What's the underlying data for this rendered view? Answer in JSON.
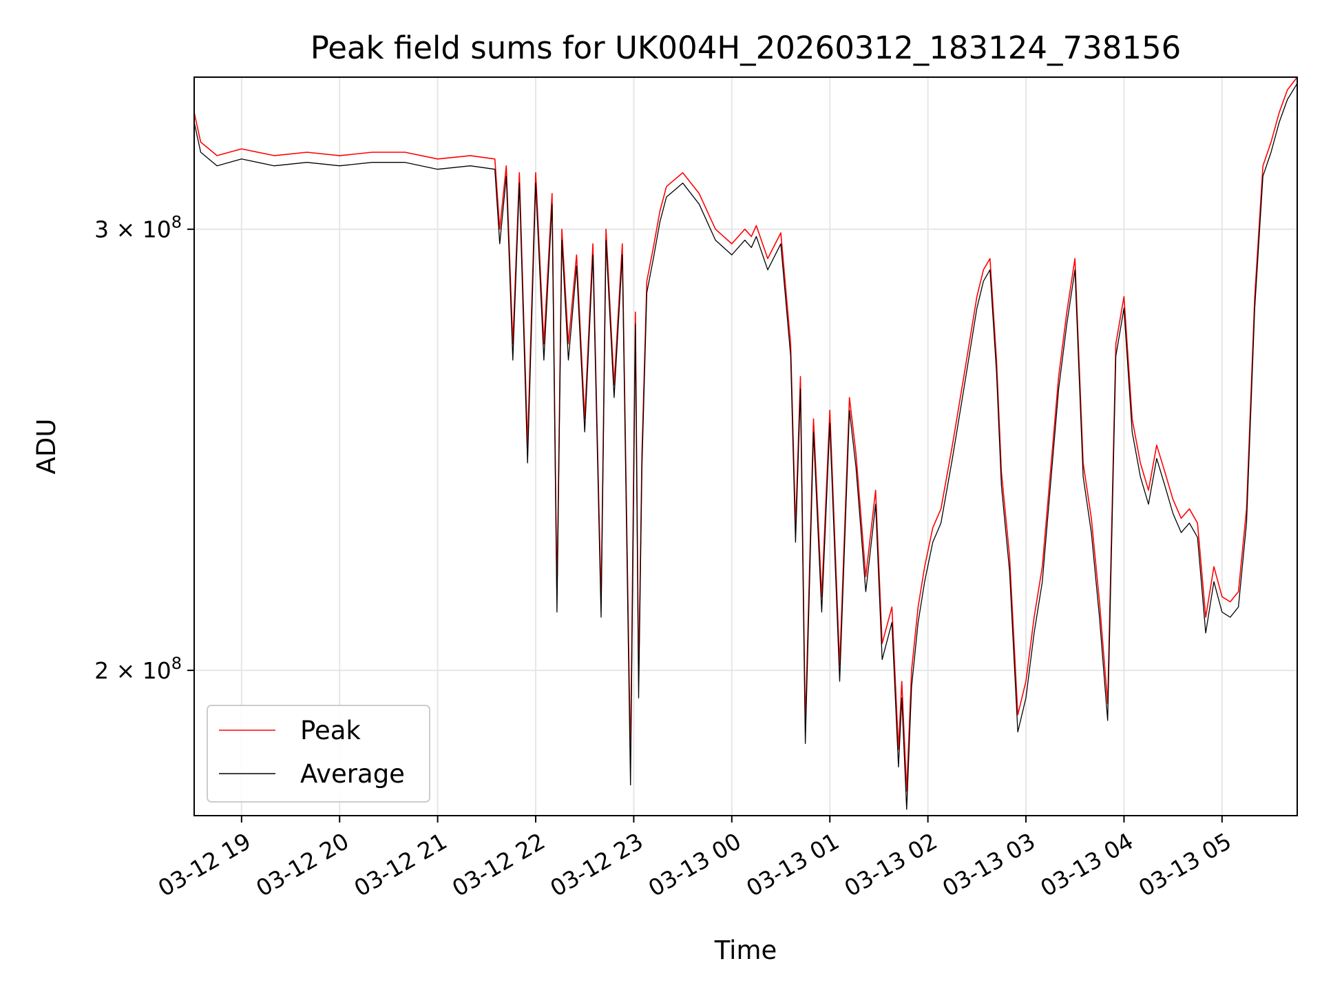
{
  "chart_data": {
    "type": "line",
    "title": "Peak field sums for UK004H_20260312_183124_738156",
    "xlabel": "Time",
    "ylabel": "ADU",
    "x_type": "time",
    "xlim": [
      "2026-03-12T18:31",
      "2026-03-13T05:46"
    ],
    "ylim": [
      175000000,
      345000000
    ],
    "y_scale": "log",
    "grid": true,
    "legend_position": "lower-left",
    "x_ticks": [
      {
        "value": "2026-03-12T19:00",
        "label": "03-12 19"
      },
      {
        "value": "2026-03-12T20:00",
        "label": "03-12 20"
      },
      {
        "value": "2026-03-12T21:00",
        "label": "03-12 21"
      },
      {
        "value": "2026-03-12T22:00",
        "label": "03-12 22"
      },
      {
        "value": "2026-03-12T23:00",
        "label": "03-12 23"
      },
      {
        "value": "2026-03-13T00:00",
        "label": "03-13 00"
      },
      {
        "value": "2026-03-13T01:00",
        "label": "03-13 01"
      },
      {
        "value": "2026-03-13T02:00",
        "label": "03-13 02"
      },
      {
        "value": "2026-03-13T03:00",
        "label": "03-13 03"
      },
      {
        "value": "2026-03-13T04:00",
        "label": "03-13 04"
      },
      {
        "value": "2026-03-13T05:00",
        "label": "03-13 05"
      }
    ],
    "y_ticks": [
      {
        "value": 200000000,
        "mantissa": "2",
        "times": " × 10",
        "exponent": "8"
      },
      {
        "value": 300000000,
        "mantissa": "3",
        "times": " × 10",
        "exponent": "8"
      }
    ],
    "series": [
      {
        "name": "Peak",
        "color": "#ff0000",
        "x": [
          "2026-03-12T18:31",
          "2026-03-12T18:35",
          "2026-03-12T18:45",
          "2026-03-12T19:00",
          "2026-03-12T19:20",
          "2026-03-12T19:40",
          "2026-03-12T20:00",
          "2026-03-12T20:20",
          "2026-03-12T20:40",
          "2026-03-12T21:00",
          "2026-03-12T21:20",
          "2026-03-12T21:35",
          "2026-03-12T21:38",
          "2026-03-12T21:42",
          "2026-03-12T21:46",
          "2026-03-12T21:50",
          "2026-03-12T21:55",
          "2026-03-12T22:00",
          "2026-03-12T22:05",
          "2026-03-12T22:10",
          "2026-03-12T22:13",
          "2026-03-12T22:16",
          "2026-03-12T22:20",
          "2026-03-12T22:25",
          "2026-03-12T22:30",
          "2026-03-12T22:35",
          "2026-03-12T22:40",
          "2026-03-12T22:43",
          "2026-03-12T22:48",
          "2026-03-12T22:53",
          "2026-03-12T22:58",
          "2026-03-12T23:01",
          "2026-03-12T23:03",
          "2026-03-12T23:05",
          "2026-03-12T23:08",
          "2026-03-12T23:12",
          "2026-03-12T23:16",
          "2026-03-12T23:20",
          "2026-03-12T23:25",
          "2026-03-12T23:30",
          "2026-03-12T23:40",
          "2026-03-12T23:50",
          "2026-03-13T00:00",
          "2026-03-13T00:08",
          "2026-03-13T00:12",
          "2026-03-13T00:15",
          "2026-03-13T00:22",
          "2026-03-13T00:30",
          "2026-03-13T00:36",
          "2026-03-13T00:39",
          "2026-03-13T00:42",
          "2026-03-13T00:45",
          "2026-03-13T00:50",
          "2026-03-13T00:55",
          "2026-03-13T01:00",
          "2026-03-13T01:06",
          "2026-03-13T01:12",
          "2026-03-13T01:16",
          "2026-03-13T01:22",
          "2026-03-13T01:28",
          "2026-03-13T01:32",
          "2026-03-13T01:38",
          "2026-03-13T01:42",
          "2026-03-13T01:44",
          "2026-03-13T01:47",
          "2026-03-13T01:50",
          "2026-03-13T01:54",
          "2026-03-13T01:58",
          "2026-03-13T02:03",
          "2026-03-13T02:08",
          "2026-03-13T02:15",
          "2026-03-13T02:22",
          "2026-03-13T02:30",
          "2026-03-13T02:34",
          "2026-03-13T02:38",
          "2026-03-13T02:42",
          "2026-03-13T02:45",
          "2026-03-13T02:50",
          "2026-03-13T02:55",
          "2026-03-13T03:00",
          "2026-03-13T03:05",
          "2026-03-13T03:10",
          "2026-03-13T03:15",
          "2026-03-13T03:20",
          "2026-03-13T03:25",
          "2026-03-13T03:30",
          "2026-03-13T03:35",
          "2026-03-13T03:40",
          "2026-03-13T03:45",
          "2026-03-13T03:50",
          "2026-03-13T03:55",
          "2026-03-13T04:00",
          "2026-03-13T04:05",
          "2026-03-13T04:10",
          "2026-03-13T04:15",
          "2026-03-13T04:20",
          "2026-03-13T04:25",
          "2026-03-13T04:30",
          "2026-03-13T04:35",
          "2026-03-13T04:40",
          "2026-03-13T04:45",
          "2026-03-13T04:50",
          "2026-03-13T04:55",
          "2026-03-13T05:00",
          "2026-03-13T05:05",
          "2026-03-13T05:10",
          "2026-03-13T05:15",
          "2026-03-13T05:20",
          "2026-03-13T05:25",
          "2026-03-13T05:30",
          "2026-03-13T05:35",
          "2026-03-13T05:40",
          "2026-03-13T05:46"
        ],
        "y": [
          334000000,
          325000000,
          321000000,
          323000000,
          321000000,
          322000000,
          321000000,
          322000000,
          322000000,
          320000000,
          321000000,
          320000000,
          300000000,
          318000000,
          270000000,
          316000000,
          246000000,
          316000000,
          270000000,
          310000000,
          214000000,
          300000000,
          270000000,
          293000000,
          252000000,
          296000000,
          213000000,
          300000000,
          260000000,
          296000000,
          184000000,
          278000000,
          198000000,
          244000000,
          286000000,
          295000000,
          305000000,
          312000000,
          314000000,
          316000000,
          310000000,
          300000000,
          296000000,
          300000000,
          298000000,
          301000000,
          292000000,
          299000000,
          270000000,
          228000000,
          262000000,
          190000000,
          252000000,
          214000000,
          254000000,
          201000000,
          257000000,
          244000000,
          218000000,
          236000000,
          205000000,
          212000000,
          186000000,
          198000000,
          179000000,
          200000000,
          212000000,
          220000000,
          228000000,
          232000000,
          246000000,
          262000000,
          282000000,
          289000000,
          292000000,
          266000000,
          240000000,
          222000000,
          192000000,
          198000000,
          210000000,
          220000000,
          240000000,
          262000000,
          278000000,
          292000000,
          242000000,
          230000000,
          213000000,
          194000000,
          270000000,
          282000000,
          252000000,
          242000000,
          236000000,
          246000000,
          240000000,
          234000000,
          230000000,
          232000000,
          229000000,
          210000000,
          220000000,
          214000000,
          213000000,
          215000000,
          232000000,
          282000000,
          318000000,
          325000000,
          334000000,
          341000000,
          345000000
        ]
      },
      {
        "name": "Average",
        "color": "#000000",
        "x": [
          "2026-03-12T18:31",
          "2026-03-12T18:35",
          "2026-03-12T18:45",
          "2026-03-12T19:00",
          "2026-03-12T19:20",
          "2026-03-12T19:40",
          "2026-03-12T20:00",
          "2026-03-12T20:20",
          "2026-03-12T20:40",
          "2026-03-12T21:00",
          "2026-03-12T21:20",
          "2026-03-12T21:35",
          "2026-03-12T21:38",
          "2026-03-12T21:42",
          "2026-03-12T21:46",
          "2026-03-12T21:50",
          "2026-03-12T21:55",
          "2026-03-12T22:00",
          "2026-03-12T22:05",
          "2026-03-12T22:10",
          "2026-03-12T22:13",
          "2026-03-12T22:16",
          "2026-03-12T22:20",
          "2026-03-12T22:25",
          "2026-03-12T22:30",
          "2026-03-12T22:35",
          "2026-03-12T22:40",
          "2026-03-12T22:43",
          "2026-03-12T22:48",
          "2026-03-12T22:53",
          "2026-03-12T22:58",
          "2026-03-12T23:01",
          "2026-03-12T23:03",
          "2026-03-12T23:05",
          "2026-03-12T23:08",
          "2026-03-12T23:12",
          "2026-03-12T23:16",
          "2026-03-12T23:20",
          "2026-03-12T23:25",
          "2026-03-12T23:30",
          "2026-03-12T23:40",
          "2026-03-12T23:50",
          "2026-03-13T00:00",
          "2026-03-13T00:08",
          "2026-03-13T00:12",
          "2026-03-13T00:15",
          "2026-03-13T00:22",
          "2026-03-13T00:30",
          "2026-03-13T00:36",
          "2026-03-13T00:39",
          "2026-03-13T00:42",
          "2026-03-13T00:45",
          "2026-03-13T00:50",
          "2026-03-13T00:55",
          "2026-03-13T01:00",
          "2026-03-13T01:06",
          "2026-03-13T01:12",
          "2026-03-13T01:16",
          "2026-03-13T01:22",
          "2026-03-13T01:28",
          "2026-03-13T01:32",
          "2026-03-13T01:38",
          "2026-03-13T01:42",
          "2026-03-13T01:44",
          "2026-03-13T01:47",
          "2026-03-13T01:50",
          "2026-03-13T01:54",
          "2026-03-13T01:58",
          "2026-03-13T02:03",
          "2026-03-13T02:08",
          "2026-03-13T02:15",
          "2026-03-13T02:22",
          "2026-03-13T02:30",
          "2026-03-13T02:34",
          "2026-03-13T02:38",
          "2026-03-13T02:42",
          "2026-03-13T02:45",
          "2026-03-13T02:50",
          "2026-03-13T02:55",
          "2026-03-13T03:00",
          "2026-03-13T03:05",
          "2026-03-13T03:10",
          "2026-03-13T03:15",
          "2026-03-13T03:20",
          "2026-03-13T03:25",
          "2026-03-13T03:30",
          "2026-03-13T03:35",
          "2026-03-13T03:40",
          "2026-03-13T03:45",
          "2026-03-13T03:50",
          "2026-03-13T03:55",
          "2026-03-13T04:00",
          "2026-03-13T04:05",
          "2026-03-13T04:10",
          "2026-03-13T04:15",
          "2026-03-13T04:20",
          "2026-03-13T04:25",
          "2026-03-13T04:30",
          "2026-03-13T04:35",
          "2026-03-13T04:40",
          "2026-03-13T04:45",
          "2026-03-13T04:50",
          "2026-03-13T04:55",
          "2026-03-13T05:00",
          "2026-03-13T05:05",
          "2026-03-13T05:10",
          "2026-03-13T05:15",
          "2026-03-13T05:20",
          "2026-03-13T05:25",
          "2026-03-13T05:30",
          "2026-03-13T05:35",
          "2026-03-13T05:40",
          "2026-03-13T05:46"
        ],
        "y": [
          331000000,
          322000000,
          318000000,
          320000000,
          318000000,
          319000000,
          318000000,
          319000000,
          319000000,
          317000000,
          318000000,
          317000000,
          296000000,
          315000000,
          266000000,
          313000000,
          242000000,
          313000000,
          266000000,
          307000000,
          211000000,
          297000000,
          266000000,
          290000000,
          249000000,
          293000000,
          210000000,
          297000000,
          257000000,
          293000000,
          180000000,
          275000000,
          195000000,
          241000000,
          283000000,
          292000000,
          302000000,
          309000000,
          311000000,
          313000000,
          307000000,
          297000000,
          293000000,
          297000000,
          295000000,
          298000000,
          289000000,
          296000000,
          267000000,
          225000000,
          259000000,
          187000000,
          249000000,
          211000000,
          251000000,
          198000000,
          254000000,
          241000000,
          215000000,
          233000000,
          202000000,
          209000000,
          183000000,
          195000000,
          176000000,
          197000000,
          209000000,
          217000000,
          225000000,
          229000000,
          243000000,
          259000000,
          279000000,
          286000000,
          289000000,
          263000000,
          237000000,
          219000000,
          189000000,
          195000000,
          207000000,
          217000000,
          237000000,
          259000000,
          275000000,
          289000000,
          239000000,
          227000000,
          210000000,
          191000000,
          267000000,
          279000000,
          249000000,
          239000000,
          233000000,
          243000000,
          237000000,
          231000000,
          227000000,
          229000000,
          226000000,
          207000000,
          217000000,
          211000000,
          210000000,
          212000000,
          229000000,
          279000000,
          315000000,
          322000000,
          331000000,
          338000000,
          343000000
        ]
      }
    ]
  }
}
